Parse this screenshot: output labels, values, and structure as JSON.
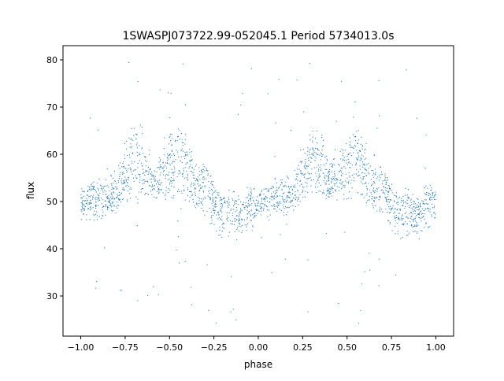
{
  "chart_data": {
    "type": "scatter",
    "title": "1SWASPJ073722.99-052045.1 Period 5734013.0s",
    "xlabel": "phase",
    "ylabel": "flux",
    "xlim": [
      -1.1,
      1.1
    ],
    "ylim": [
      21.5,
      83.0
    ],
    "xticks": [
      -1.0,
      -0.75,
      -0.5,
      -0.25,
      0.0,
      0.25,
      0.5,
      0.75,
      1.0
    ],
    "xtick_labels": [
      "−1.00",
      "−0.75",
      "−0.50",
      "−0.25",
      "0.00",
      "0.25",
      "0.50",
      "0.75",
      "1.00"
    ],
    "yticks": [
      30,
      40,
      50,
      60,
      70,
      80
    ],
    "ytick_labels": [
      "30",
      "40",
      "50",
      "60",
      "70",
      "80"
    ],
    "grid": false,
    "legend": "none",
    "marker_color": "#1f77b4",
    "series": [
      {
        "phase_profile": {
          "x": [
            -1.0,
            -0.9,
            -0.8,
            -0.75,
            -0.7,
            -0.65,
            -0.6,
            -0.55,
            -0.5,
            -0.45,
            -0.4,
            -0.35,
            -0.3,
            -0.25,
            -0.2,
            -0.15,
            -0.1,
            -0.05,
            0.0
          ],
          "median_flux": [
            50,
            51,
            51,
            56,
            59,
            56,
            54,
            55,
            56,
            60,
            57,
            52,
            55,
            50,
            48,
            48,
            47,
            49,
            49
          ],
          "upper_flux": [
            53,
            55,
            56,
            63,
            67,
            66,
            58,
            60,
            64,
            66,
            63,
            60,
            58,
            54,
            52,
            53,
            51,
            54,
            53
          ],
          "lower_flux": [
            46,
            46,
            48,
            50,
            50,
            50,
            49,
            50,
            50,
            51,
            50,
            48,
            47,
            44,
            42,
            43,
            43,
            44,
            45
          ]
        },
        "symmetry": "profile repeats with period 1.0 in phase (x and x+1 identical)"
      }
    ]
  }
}
